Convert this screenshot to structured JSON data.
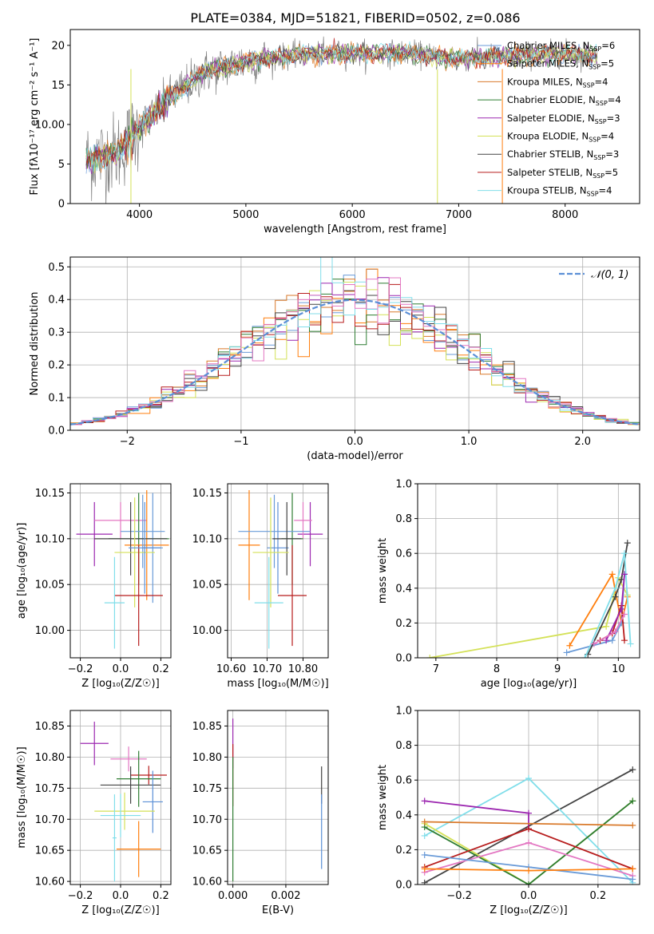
{
  "title": "PLATE=0384, MJD=51821, FIBERID=0502, z=0.086",
  "colors": {
    "Chabrier MILES": "#6a9bd8",
    "Salpeter MILES": "#ff7f0e",
    "Kroupa MILES": "#d97a2b",
    "Chabrier ELODIE": "#2e7d32",
    "Salpeter ELODIE": "#9c27b0",
    "Kroupa ELODIE": "#d4e157",
    "Chabrier STELIB": "#444444",
    "Salpeter STELIB": "#b71c1c",
    "Kroupa STELIB": "#80deea",
    "Pink": "#e377c2",
    "Normal": "#5b8fd6",
    "Data": "#808080"
  },
  "chart_data": [
    {
      "id": "spectrum",
      "type": "line",
      "xlabel": "wavelength [Angstrom, rest frame]",
      "ylabel": "Flux [fλ10⁻¹⁷ erg cm⁻² s⁻¹ A⁻¹]",
      "xlim": [
        3350,
        8700
      ],
      "ylim": [
        0,
        22
      ],
      "xticks": [
        4000,
        5000,
        6000,
        7000,
        8000
      ],
      "yticks": [
        0,
        5,
        10,
        15,
        20
      ],
      "continuum": [
        [
          3500,
          5.5
        ],
        [
          3800,
          6.5
        ],
        [
          4000,
          9.5
        ],
        [
          4300,
          13.5
        ],
        [
          4600,
          16.5
        ],
        [
          5000,
          18.0
        ],
        [
          5500,
          18.8
        ],
        [
          6000,
          19.0
        ],
        [
          6500,
          19.0
        ],
        [
          7000,
          18.3
        ],
        [
          7500,
          18.7
        ],
        [
          8000,
          19.0
        ],
        [
          8300,
          18.6
        ]
      ],
      "legend": [
        {
          "label": "Chabrier MILES, N",
          "sub": "SSP",
          "suffix": "=6"
        },
        {
          "label": "Salpeter MILES, N",
          "sub": "SSP",
          "suffix": "=5"
        },
        {
          "label": "Kroupa MILES, N",
          "sub": "SSP",
          "suffix": "=4"
        },
        {
          "label": "Chabrier ELODIE, N",
          "sub": "SSP",
          "suffix": "=4"
        },
        {
          "label": "Salpeter ELODIE, N",
          "sub": "SSP",
          "suffix": "=3"
        },
        {
          "label": "Kroupa ELODIE, N",
          "sub": "SSP",
          "suffix": "=4"
        },
        {
          "label": "Chabrier STELIB, N",
          "sub": "SSP",
          "suffix": "=3"
        },
        {
          "label": "Salpeter STELIB, N",
          "sub": "SSP",
          "suffix": "=5"
        },
        {
          "label": "Kroupa STELIB, N",
          "sub": "SSP",
          "suffix": "=4"
        }
      ],
      "legend_position": "top-right",
      "grid": false
    },
    {
      "id": "residuals",
      "type": "line",
      "xlabel": "(data-model)/error",
      "ylabel": "Normed distribution",
      "xlim": [
        -2.5,
        2.5
      ],
      "ylim": [
        0,
        0.53
      ],
      "xticks": [
        -2,
        -1,
        0,
        1,
        2
      ],
      "yticks": [
        0.0,
        0.1,
        0.2,
        0.3,
        0.4,
        0.5
      ],
      "series": [
        {
          "name": "𝒩(0, 1)",
          "mean": 0,
          "sigma": 1
        }
      ],
      "bin_width": 0.1,
      "grid": true,
      "legend_position": "top-right"
    },
    {
      "id": "age-vs-Z",
      "type": "scatter",
      "xlabel": "Z [log₁₀(Z/Z☉)]",
      "ylabel": "age  [log₁₀(age/yr)]",
      "xlim": [
        -0.25,
        0.25
      ],
      "ylim": [
        9.97,
        10.16
      ],
      "xticks": [
        -0.2,
        0.0,
        0.2
      ],
      "yticks": [
        10.0,
        10.05,
        10.1,
        10.15
      ],
      "points": [
        {
          "x": -0.13,
          "y": 10.105,
          "xerr": 0.09,
          "yerr": 0.035,
          "c": "Salpeter ELODIE"
        },
        {
          "x": 0.0,
          "y": 10.12,
          "xerr": 0.13,
          "yerr": 0.02,
          "c": "Pink"
        },
        {
          "x": 0.09,
          "y": 10.1,
          "xerr": 0.15,
          "yerr": 0.05,
          "c": "Chabrier ELODIE"
        },
        {
          "x": 0.13,
          "y": 10.093,
          "xerr": 0.11,
          "yerr": 0.06,
          "c": "Salpeter MILES"
        },
        {
          "x": 0.11,
          "y": 10.108,
          "xerr": 0.11,
          "yerr": 0.04,
          "c": "Chabrier MILES"
        },
        {
          "x": 0.16,
          "y": 10.09,
          "xerr": 0.05,
          "yerr": 0.06,
          "c": "Chabrier MILES"
        },
        {
          "x": 0.05,
          "y": 10.1,
          "xerr": 0.18,
          "yerr": 0.04,
          "c": "Chabrier STELIB"
        },
        {
          "x": 0.07,
          "y": 10.085,
          "xerr": 0.1,
          "yerr": 0.06,
          "c": "Kroupa ELODIE"
        },
        {
          "x": 0.09,
          "y": 10.038,
          "xerr": 0.12,
          "yerr": 0.055,
          "c": "Salpeter STELIB"
        },
        {
          "x": -0.03,
          "y": 10.03,
          "xerr": 0.05,
          "yerr": 0.05,
          "c": "Kroupa STELIB"
        },
        {
          "x": 0.12,
          "y": 10.09,
          "xerr": 0.08,
          "yerr": 0.05,
          "c": "Normal"
        }
      ],
      "grid": true
    },
    {
      "id": "age-vs-mass",
      "type": "scatter",
      "xlabel": "mass [log₁₀(M/M☉)]",
      "ylabel": "",
      "xlim": [
        10.59,
        10.87
      ],
      "ylim": [
        9.97,
        10.16
      ],
      "xticks": [
        10.6,
        10.7,
        10.8
      ],
      "yticks": [
        10.0,
        10.05,
        10.1,
        10.15
      ],
      "points": [
        {
          "x": 10.82,
          "y": 10.105,
          "xerr": 0.035,
          "yerr": 0.035,
          "c": "Salpeter ELODIE"
        },
        {
          "x": 10.8,
          "y": 10.12,
          "xerr": 0.025,
          "yerr": 0.02,
          "c": "Pink"
        },
        {
          "x": 10.77,
          "y": 10.1,
          "xerr": 0.03,
          "yerr": 0.05,
          "c": "Chabrier ELODIE"
        },
        {
          "x": 10.65,
          "y": 10.093,
          "xerr": 0.03,
          "yerr": 0.06,
          "c": "Salpeter MILES"
        },
        {
          "x": 10.72,
          "y": 10.108,
          "xerr": 0.1,
          "yerr": 0.04,
          "c": "Chabrier MILES"
        },
        {
          "x": 10.73,
          "y": 10.09,
          "xerr": 0.03,
          "yerr": 0.05,
          "c": "Normal"
        },
        {
          "x": 10.755,
          "y": 10.1,
          "xerr": 0.04,
          "yerr": 0.04,
          "c": "Chabrier STELIB"
        },
        {
          "x": 10.71,
          "y": 10.085,
          "xerr": 0.05,
          "yerr": 0.06,
          "c": "Kroupa ELODIE"
        },
        {
          "x": 10.77,
          "y": 10.038,
          "xerr": 0.04,
          "yerr": 0.055,
          "c": "Salpeter STELIB"
        },
        {
          "x": 10.705,
          "y": 10.03,
          "xerr": 0.04,
          "yerr": 0.05,
          "c": "Kroupa STELIB"
        }
      ],
      "grid": true
    },
    {
      "id": "weight-vs-age",
      "type": "line",
      "xlabel": "age  [log₁₀(age/yr)]",
      "ylabel": "mass weight",
      "xlim": [
        6.7,
        10.35
      ],
      "ylim": [
        0,
        1
      ],
      "xticks": [
        7,
        8,
        9,
        10
      ],
      "yticks": [
        0.0,
        0.2,
        0.4,
        0.6,
        0.8,
        1.0
      ],
      "series": [
        {
          "c": "Kroupa ELODIE",
          "points": [
            [
              6.9,
              0.0
            ],
            [
              9.8,
              0.18
            ],
            [
              10.0,
              0.46
            ],
            [
              10.15,
              0.36
            ]
          ]
        },
        {
          "c": "Salpeter MILES",
          "points": [
            [
              9.2,
              0.07
            ],
            [
              9.9,
              0.48
            ],
            [
              10.05,
              0.2
            ],
            [
              10.15,
              0.35
            ]
          ]
        },
        {
          "c": "Chabrier MILES",
          "points": [
            [
              9.15,
              0.03
            ],
            [
              9.9,
              0.1
            ],
            [
              10.05,
              0.2
            ],
            [
              10.1,
              0.48
            ]
          ]
        },
        {
          "c": "Chabrier STELIB",
          "points": [
            [
              9.5,
              0.02
            ],
            [
              9.95,
              0.35
            ],
            [
              10.05,
              0.45
            ],
            [
              10.15,
              0.66
            ]
          ]
        },
        {
          "c": "Salpeter STELIB",
          "points": [
            [
              9.7,
              0.1
            ],
            [
              9.9,
              0.14
            ],
            [
              10.05,
              0.3
            ],
            [
              10.1,
              0.1
            ]
          ]
        },
        {
          "c": "Kroupa STELIB",
          "points": [
            [
              9.45,
              0.0
            ],
            [
              9.95,
              0.4
            ],
            [
              10.1,
              0.6
            ],
            [
              10.2,
              0.08
            ]
          ]
        },
        {
          "c": "Salpeter ELODIE",
          "points": [
            [
              9.8,
              0.1
            ],
            [
              10.05,
              0.28
            ],
            [
              10.1,
              0.48
            ]
          ]
        },
        {
          "c": "Pink",
          "points": [
            [
              9.6,
              0.08
            ],
            [
              9.95,
              0.15
            ],
            [
              10.1,
              0.25
            ]
          ]
        }
      ],
      "grid": true
    },
    {
      "id": "mass-vs-Z",
      "type": "scatter",
      "xlabel": "Z [log₁₀(Z/Z☉)]",
      "ylabel": "mass [log₁₀(M/M☉)]",
      "xlim": [
        -0.25,
        0.25
      ],
      "ylim": [
        10.595,
        10.875
      ],
      "xticks": [
        -0.2,
        0.0,
        0.2
      ],
      "yticks": [
        10.6,
        10.65,
        10.7,
        10.75,
        10.8,
        10.85
      ],
      "points": [
        {
          "x": -0.13,
          "y": 10.822,
          "xerr": 0.07,
          "yerr": 0.035,
          "c": "Salpeter ELODIE"
        },
        {
          "x": 0.04,
          "y": 10.797,
          "xerr": 0.09,
          "yerr": 0.02,
          "c": "Pink"
        },
        {
          "x": 0.14,
          "y": 10.771,
          "xerr": 0.09,
          "yerr": 0.015,
          "c": "Salpeter STELIB"
        },
        {
          "x": 0.09,
          "y": 10.765,
          "xerr": 0.11,
          "yerr": 0.045,
          "c": "Chabrier ELODIE"
        },
        {
          "x": 0.05,
          "y": 10.755,
          "xerr": 0.15,
          "yerr": 0.03,
          "c": "Chabrier STELIB"
        },
        {
          "x": 0.16,
          "y": 10.728,
          "xerr": 0.05,
          "yerr": 0.05,
          "c": "Normal"
        },
        {
          "x": 0.02,
          "y": 10.713,
          "xerr": 0.15,
          "yerr": 0.03,
          "c": "Kroupa ELODIE"
        },
        {
          "x": 0.0,
          "y": 10.706,
          "xerr": 0.1,
          "yerr": 0.035,
          "c": "Kroupa STELIB"
        },
        {
          "x": 0.09,
          "y": 10.652,
          "xerr": 0.11,
          "yerr": 0.045,
          "c": "Salpeter MILES"
        },
        {
          "x": -0.03,
          "y": 10.67,
          "xerr": 0.01,
          "yerr": 0.07,
          "c": "Kroupa STELIB"
        }
      ],
      "grid": true
    },
    {
      "id": "mass-vs-EBV",
      "type": "scatter",
      "xlabel": "E(B-V)",
      "ylabel": "",
      "xlim": [
        -0.0002,
        0.0036
      ],
      "ylim": [
        10.595,
        10.875
      ],
      "xticks": [
        0.0,
        0.002
      ],
      "yticks": [
        10.6,
        10.65,
        10.7,
        10.75,
        10.8,
        10.85
      ],
      "points": [
        {
          "x": 0.0,
          "y": 10.822,
          "xerr": 0,
          "yerr": 0.04,
          "c": "Salpeter ELODIE"
        },
        {
          "x": 0.0,
          "y": 10.771,
          "xerr": 0,
          "yerr": 0.05,
          "c": "Salpeter STELIB"
        },
        {
          "x": 0.0,
          "y": 10.7,
          "xerr": 0,
          "yerr": 0.1,
          "c": "Chabrier ELODIE"
        },
        {
          "x": 0.00335,
          "y": 10.755,
          "xerr": 0,
          "yerr": 0.03,
          "c": "Chabrier STELIB"
        },
        {
          "x": 0.00335,
          "y": 10.68,
          "xerr": 0,
          "yerr": 0.06,
          "c": "Normal"
        }
      ],
      "grid": true
    },
    {
      "id": "weight-vs-Z",
      "type": "line",
      "xlabel": "Z [log₁₀(Z/Z☉)]",
      "ylabel": "mass weight",
      "xlim": [
        -0.32,
        0.32
      ],
      "ylim": [
        0,
        1
      ],
      "xticks": [
        -0.2,
        0.0,
        0.2
      ],
      "yticks": [
        0.0,
        0.2,
        0.4,
        0.6,
        0.8,
        1.0
      ],
      "series": [
        {
          "c": "Chabrier STELIB",
          "points": [
            [
              -0.3,
              0.01
            ],
            [
              0.3,
              0.66
            ]
          ]
        },
        {
          "c": "Kroupa STELIB",
          "points": [
            [
              -0.3,
              0.28
            ],
            [
              0.0,
              0.61
            ],
            [
              0.3,
              0.01
            ]
          ]
        },
        {
          "c": "Salpeter ELODIE",
          "points": [
            [
              -0.3,
              0.48
            ],
            [
              0.0,
              0.41
            ],
            [
              0.0,
              0.32
            ]
          ]
        },
        {
          "c": "Kroupa ELODIE",
          "points": [
            [
              -0.3,
              0.35
            ],
            [
              0.0,
              0.0
            ],
            [
              0.3,
              0.48
            ]
          ]
        },
        {
          "c": "Chabrier ELODIE",
          "points": [
            [
              -0.3,
              0.33
            ],
            [
              0.0,
              0.0
            ],
            [
              0.3,
              0.48
            ]
          ]
        },
        {
          "c": "Salpeter STELIB",
          "points": [
            [
              -0.3,
              0.1
            ],
            [
              0.0,
              0.32
            ],
            [
              0.3,
              0.09
            ]
          ]
        },
        {
          "c": "Pink",
          "points": [
            [
              -0.3,
              0.07
            ],
            [
              0.0,
              0.24
            ],
            [
              0.3,
              0.05
            ]
          ]
        },
        {
          "c": "Chabrier MILES",
          "points": [
            [
              -0.3,
              0.17
            ],
            [
              0.0,
              0.1
            ],
            [
              0.3,
              0.03
            ]
          ]
        },
        {
          "c": "Salpeter MILES",
          "points": [
            [
              -0.3,
              0.09
            ],
            [
              0.0,
              0.08
            ],
            [
              0.3,
              0.09
            ]
          ]
        },
        {
          "c": "Kroupa MILES",
          "points": [
            [
              -0.3,
              0.36
            ],
            [
              0.3,
              0.34
            ]
          ]
        }
      ],
      "grid": true
    }
  ]
}
